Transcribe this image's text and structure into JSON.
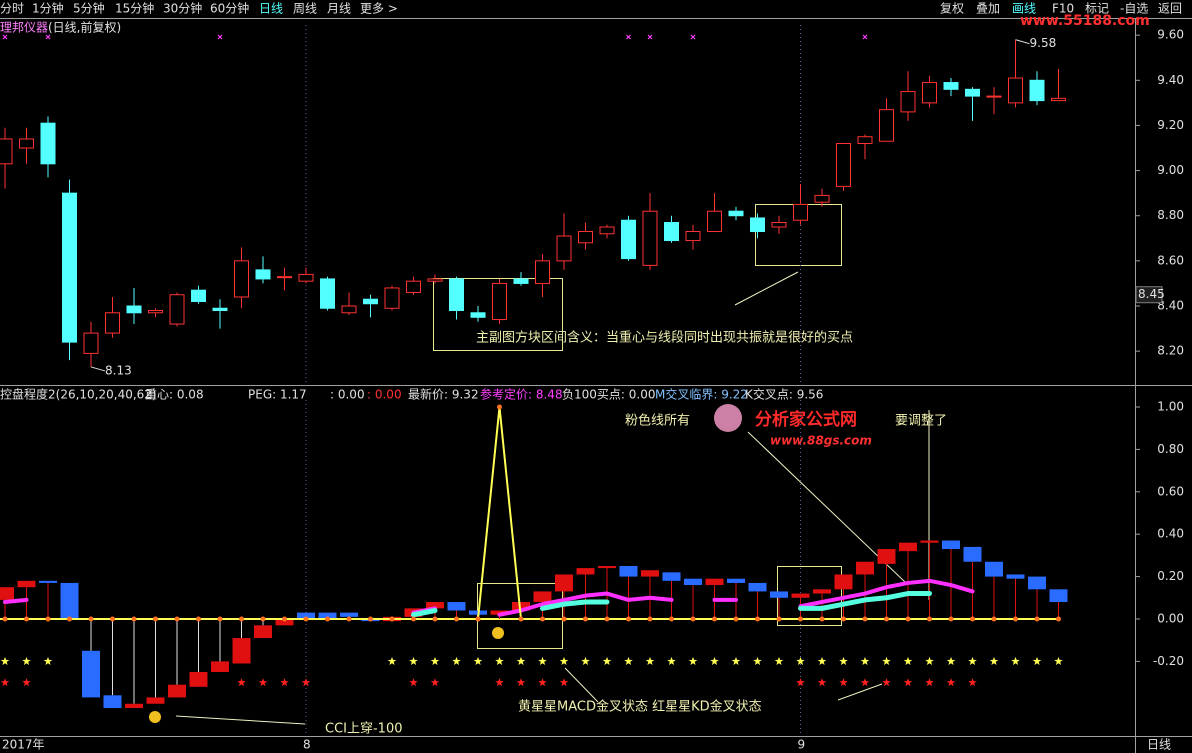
{
  "toolbar": {
    "left": [
      "分时",
      "1分钟",
      "5分钟",
      "15分钟",
      "30分钟",
      "60分钟",
      "日线",
      "周线",
      "月线",
      "更多 >"
    ],
    "right": [
      "复权",
      "叠加",
      "画线",
      "F10",
      "标记",
      "-自选",
      "返回"
    ],
    "active_left": 6,
    "active_right": 2
  },
  "watermark": "www.55188.com",
  "annotations": {
    "main": "主副图方块区间含义：当重心与线段同时出现共振就是很好的买点",
    "pink_prefix": "粉色线所有",
    "logo": "分析家公式网",
    "logo_url": "www.88gs.com",
    "pink_suffix": "要调整了",
    "stars_note": "黄星星MACD金叉状态 红星星KD金叉状态",
    "cci_note": "CCI上穿-100",
    "period": "日线"
  },
  "chart_data": [
    {
      "type": "candlestick",
      "title": "理邦仪器",
      "subtitle": "(日线,前复权)",
      "categories": [
        "2017年",
        null,
        null,
        null,
        null,
        null,
        null,
        null,
        null,
        null,
        null,
        null,
        null,
        null,
        "8",
        null,
        null,
        null,
        null,
        null,
        null,
        null,
        null,
        null,
        null,
        null,
        null,
        null,
        null,
        null,
        null,
        null,
        null,
        null,
        null,
        null,
        null,
        "9",
        null,
        null,
        null,
        null,
        null,
        null,
        null,
        null,
        null,
        null,
        null,
        null
      ],
      "open": [
        9.03,
        9.1,
        9.21,
        8.9,
        8.19,
        8.28,
        8.4,
        8.37,
        8.32,
        8.47,
        8.39,
        8.44,
        8.56,
        8.53,
        8.51,
        8.52,
        8.37,
        8.43,
        8.39,
        8.46,
        8.51,
        8.52,
        8.37,
        8.34,
        8.52,
        8.5,
        8.6,
        8.68,
        8.72,
        8.78,
        8.58,
        8.77,
        8.69,
        8.73,
        8.82,
        8.79,
        8.75,
        8.78,
        8.86,
        8.93,
        9.12,
        9.13,
        9.26,
        9.3,
        9.39,
        9.36,
        9.33,
        9.3,
        9.4,
        9.31
      ],
      "high": [
        9.19,
        9.19,
        9.24,
        8.96,
        8.33,
        8.44,
        8.48,
        8.39,
        8.46,
        8.49,
        8.43,
        8.66,
        8.62,
        8.57,
        8.57,
        8.53,
        8.46,
        8.45,
        8.49,
        8.53,
        8.54,
        8.53,
        8.4,
        8.52,
        8.55,
        8.63,
        8.81,
        8.77,
        8.76,
        8.8,
        8.9,
        8.8,
        8.76,
        8.9,
        8.84,
        8.81,
        8.8,
        8.94,
        8.92,
        9.12,
        9.16,
        9.32,
        9.44,
        9.42,
        9.41,
        9.37,
        9.37,
        9.58,
        9.44,
        9.45
      ],
      "low": [
        8.92,
        9.03,
        8.97,
        8.16,
        8.13,
        8.26,
        8.32,
        8.35,
        8.31,
        8.41,
        8.3,
        8.39,
        8.5,
        8.47,
        8.5,
        8.38,
        8.36,
        8.35,
        8.38,
        8.45,
        8.5,
        8.34,
        8.33,
        8.32,
        8.49,
        8.44,
        8.56,
        8.65,
        8.7,
        8.6,
        8.56,
        8.68,
        8.65,
        8.73,
        8.78,
        8.7,
        8.72,
        8.76,
        8.84,
        8.91,
        9.05,
        9.13,
        9.22,
        9.28,
        9.33,
        9.22,
        9.25,
        9.28,
        9.29,
        9.31
      ],
      "close": [
        9.14,
        9.14,
        9.03,
        8.24,
        8.28,
        8.37,
        8.37,
        8.38,
        8.45,
        8.42,
        8.38,
        8.6,
        8.52,
        8.53,
        8.54,
        8.39,
        8.4,
        8.41,
        8.48,
        8.51,
        8.52,
        8.38,
        8.35,
        8.5,
        8.5,
        8.6,
        8.71,
        8.73,
        8.75,
        8.61,
        8.82,
        8.69,
        8.73,
        8.82,
        8.8,
        8.73,
        8.77,
        8.85,
        8.89,
        9.12,
        9.15,
        9.27,
        9.35,
        9.39,
        9.36,
        9.33,
        9.33,
        9.41,
        9.31,
        9.32
      ],
      "up_color": "#ff3232",
      "down_color": "#54ffff",
      "current": 8.45,
      "markers": {
        "color": "#ff40ff",
        "indices": [
          0,
          2,
          10,
          29,
          30,
          32,
          40
        ]
      },
      "ylim": [
        8.05,
        9.645
      ],
      "yticks": [
        {
          "value": 9.6,
          "label": "9.60"
        },
        {
          "value": 9.4,
          "label": "9.40"
        },
        {
          "value": 9.2,
          "label": "9.20"
        },
        {
          "value": 9.0,
          "label": "9.00"
        },
        {
          "value": 8.8,
          "label": "8.80"
        },
        {
          "value": 8.6,
          "label": "8.60"
        },
        {
          "value": 8.4,
          "label": "8.40"
        },
        {
          "value": 8.2,
          "label": "8.20"
        }
      ]
    },
    {
      "type": "indicator",
      "title": "控盘程度2(26,10,20,40,62)",
      "stats": [
        {
          "text": "重心: 0.08",
          "color": "#e0e0e0"
        },
        {
          "text": "PEG: 1.17",
          "color": "#e0e0e0"
        },
        {
          "text": ": 0.00",
          "color": "#e0e0e0"
        },
        {
          "text": ": 0.00",
          "color": "#ff3232"
        },
        {
          "text": "最新价: 9.32",
          "color": "#e0e0e0"
        },
        {
          "text": "参考定价: 8.48",
          "color": "#ff40ff"
        },
        {
          "text": "负100买点: 0.00",
          "color": "#e0e0e0"
        },
        {
          "text": "M交叉临界: 9.22",
          "color": "#80c0ff"
        },
        {
          "text": "K交叉点: 9.56",
          "color": "#e0e0e0"
        }
      ],
      "blocks": {
        "high": [
          0.15,
          0.18,
          0.18,
          0.17,
          -0.15,
          -0.36,
          -0.4,
          -0.37,
          -0.31,
          -0.25,
          -0.2,
          -0.09,
          -0.03,
          0.0,
          0.03,
          0.03,
          0.03,
          0.0,
          0.01,
          0.05,
          0.08,
          0.08,
          0.04,
          0.04,
          0.08,
          0.13,
          0.21,
          0.24,
          0.25,
          0.25,
          0.23,
          0.22,
          0.19,
          0.19,
          0.19,
          0.17,
          0.13,
          0.12,
          0.14,
          0.21,
          0.27,
          0.33,
          0.36,
          0.37,
          0.37,
          0.34,
          0.27,
          0.21,
          0.2,
          0.14
        ],
        "low": [
          0.09,
          0.15,
          0.17,
          0.0,
          -0.37,
          -0.42,
          -0.42,
          -0.4,
          -0.37,
          -0.32,
          -0.25,
          -0.21,
          -0.09,
          -0.03,
          0.0,
          0.0,
          0.01,
          -0.01,
          -0.01,
          0.01,
          0.05,
          0.04,
          0.02,
          0.02,
          0.04,
          0.08,
          0.13,
          0.21,
          0.24,
          0.2,
          0.2,
          0.18,
          0.16,
          0.16,
          0.17,
          0.13,
          0.1,
          0.1,
          0.12,
          0.14,
          0.21,
          0.26,
          0.32,
          0.36,
          0.33,
          0.27,
          0.2,
          0.19,
          0.14,
          0.08
        ],
        "color": [
          "#e01010",
          "#e01010",
          "#2a6cff",
          "#2a6cff",
          "#2a6cff",
          "#2a6cff",
          "#e01010",
          "#e01010",
          "#e01010",
          "#e01010",
          "#e01010",
          "#e01010",
          "#e01010",
          "#e01010",
          "#2a6cff",
          "#2a6cff",
          "#2a6cff",
          "#2a6cff",
          "#e01010",
          "#e01010",
          "#e01010",
          "#2a6cff",
          "#2a6cff",
          "#e01010",
          "#e01010",
          "#e01010",
          "#e01010",
          "#e01010",
          "#e01010",
          "#2a6cff",
          "#e01010",
          "#2a6cff",
          "#2a6cff",
          "#e01010",
          "#2a6cff",
          "#2a6cff",
          "#2a6cff",
          "#e01010",
          "#e01010",
          "#e01010",
          "#e01010",
          "#e01010",
          "#e01010",
          "#e01010",
          "#2a6cff",
          "#2a6cff",
          "#2a6cff",
          "#2a6cff",
          "#2a6cff",
          "#2a6cff"
        ]
      },
      "series": [
        {
          "color": "#ff30ff",
          "width": 4,
          "values": [
            0.08,
            0.09,
            null,
            null,
            null,
            null,
            null,
            null,
            null,
            null,
            null,
            null,
            null,
            null,
            null,
            null,
            null,
            null,
            null,
            0.03,
            0.05,
            null,
            null,
            0.02,
            0.04,
            0.07,
            0.09,
            0.11,
            0.12,
            0.09,
            0.1,
            0.09,
            null,
            0.09,
            0.09,
            null,
            null,
            0.06,
            0.08,
            0.1,
            0.12,
            0.15,
            0.17,
            0.18,
            0.16,
            0.13,
            null,
            null,
            null,
            null
          ]
        },
        {
          "color": "#54ffe0",
          "width": 5,
          "values": [
            null,
            null,
            null,
            null,
            null,
            null,
            null,
            null,
            null,
            null,
            null,
            null,
            null,
            null,
            null,
            null,
            null,
            null,
            null,
            0.02,
            0.04,
            null,
            null,
            null,
            null,
            0.05,
            0.07,
            0.08,
            0.08,
            null,
            null,
            null,
            null,
            null,
            null,
            null,
            null,
            0.05,
            0.05,
            0.07,
            0.09,
            0.1,
            0.12,
            0.12,
            null,
            null,
            null,
            null,
            null,
            null
          ]
        },
        {
          "color": "#ffff54",
          "width": 2,
          "values": [
            0,
            0,
            0,
            0,
            0,
            0,
            0,
            0,
            0,
            0,
            0,
            0,
            0,
            0,
            0,
            0,
            0,
            0,
            0,
            0,
            0,
            0,
            0,
            1.0,
            0,
            0,
            0,
            0,
            0,
            0,
            0,
            0,
            0,
            0,
            0,
            0,
            0,
            0,
            0,
            0,
            0,
            0,
            0,
            0,
            0,
            0,
            0,
            0,
            0,
            0
          ]
        }
      ],
      "stars": [
        {
          "color": "#ffff54",
          "level": -0.2,
          "indices": [
            0,
            1,
            2,
            18,
            19,
            20,
            21,
            22,
            23,
            24,
            25,
            26,
            27,
            28,
            29,
            30,
            31,
            32,
            33,
            34,
            35,
            36,
            37,
            38,
            39,
            40,
            41,
            42,
            43,
            44,
            45,
            46,
            47,
            48,
            49
          ]
        },
        {
          "color": "#ff2020",
          "level": -0.3,
          "indices": [
            0,
            1,
            11,
            12,
            13,
            14,
            19,
            20,
            23,
            24,
            25,
            26,
            37,
            38,
            39,
            40,
            41,
            42,
            43,
            44,
            45
          ]
        }
      ],
      "ylim": [
        -0.552,
        1.033
      ],
      "yticks": [
        {
          "value": 1,
          "label": "1.00"
        },
        {
          "value": 0.8,
          "label": "0.80"
        },
        {
          "value": 0.6,
          "label": "0.60"
        },
        {
          "value": 0.4,
          "label": "0.40"
        },
        {
          "value": 0.2,
          "label": "0.20"
        },
        {
          "value": 0,
          "label": "0.00"
        },
        {
          "value": -0.2,
          "label": "-0.20"
        }
      ]
    }
  ]
}
